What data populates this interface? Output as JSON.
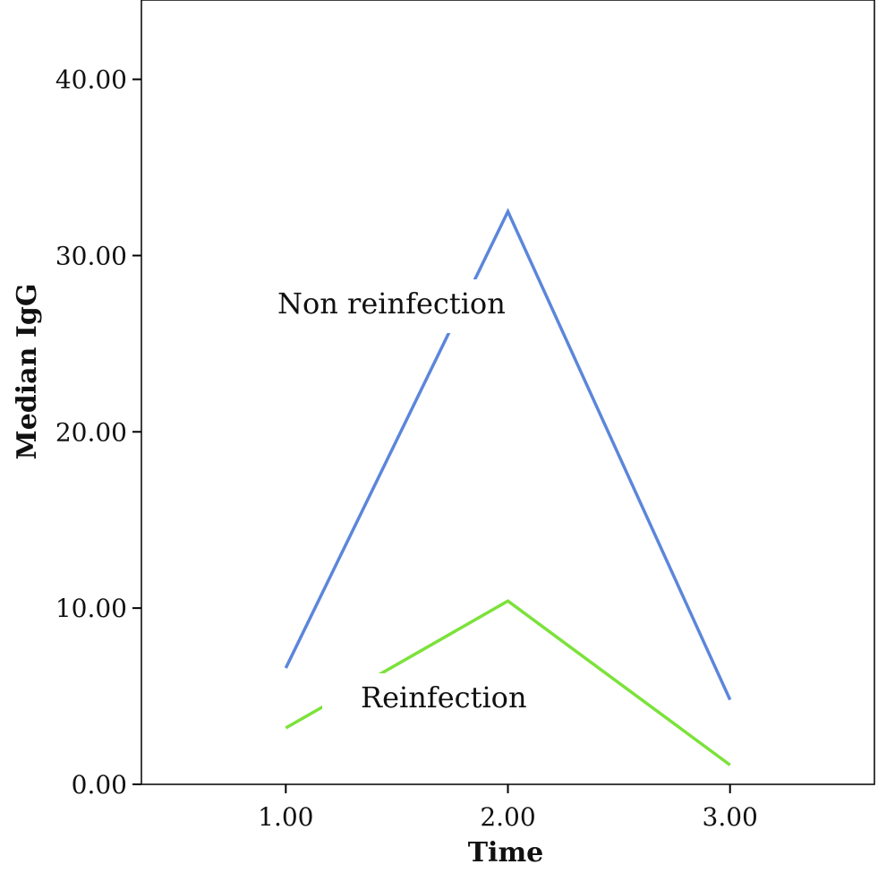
{
  "chart_data": {
    "type": "line",
    "title": "",
    "xlabel": "Time",
    "ylabel": "Median IgG",
    "xlim": [
      0.35,
      3.65
    ],
    "ylim": [
      0,
      44.5
    ],
    "x_ticks": [
      1.0,
      2.0,
      3.0
    ],
    "x_tick_labels": [
      "1.00",
      "2.00",
      "3.00"
    ],
    "y_ticks": [
      0,
      10,
      20,
      30,
      40
    ],
    "y_tick_labels": [
      "0.00",
      "10.00",
      "20.00",
      "30.00",
      "40.00"
    ],
    "grid": false,
    "legend": "none",
    "series": [
      {
        "name": "Non reinfection",
        "color": "#5b86db",
        "x": [
          1.0,
          2.0,
          3.0
        ],
        "y": [
          6.6,
          32.5,
          4.8
        ]
      },
      {
        "name": "Reinfection",
        "color": "#7be23a",
        "x": [
          1.0,
          2.0,
          3.0
        ],
        "y": [
          3.2,
          10.4,
          1.1
        ]
      }
    ]
  }
}
